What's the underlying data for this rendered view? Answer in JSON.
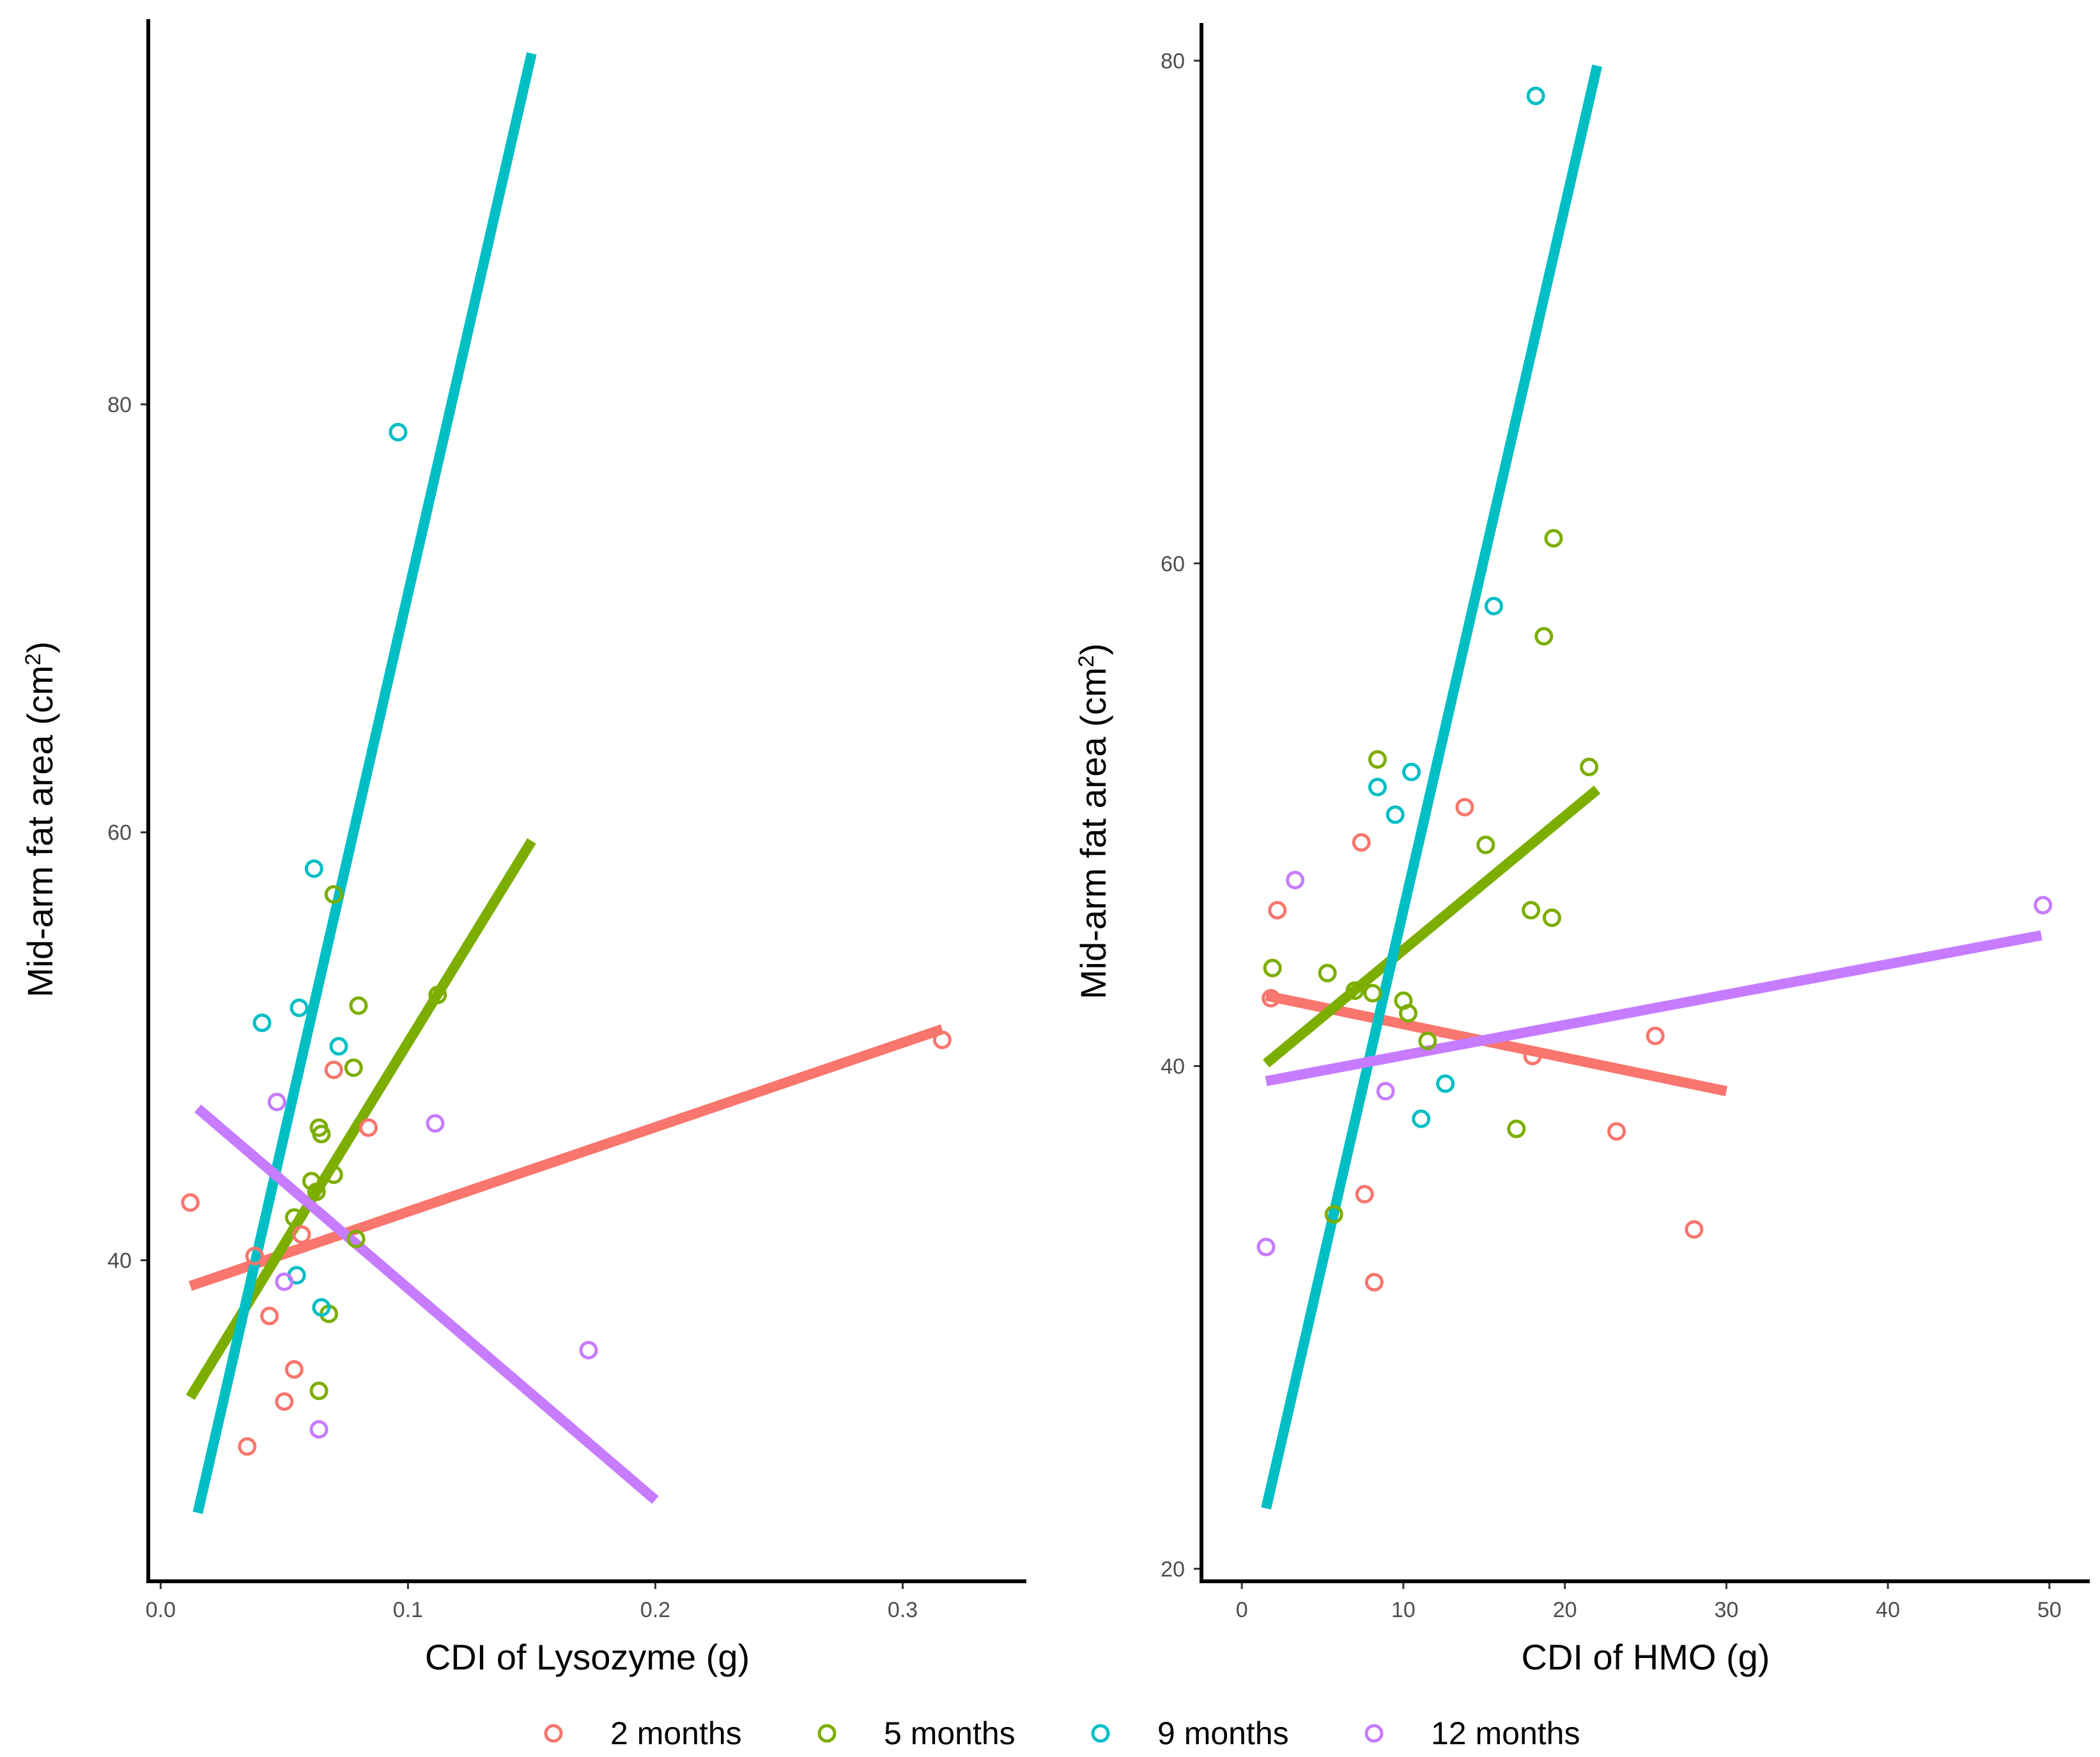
{
  "chart_data": [
    {
      "type": "scatter",
      "title": "",
      "xlabel": "CDI of Lysozyme (g)",
      "ylabel_main": "Mid-arm fat area (cm",
      "ylabel_sup": "2",
      "ylabel_end": ")",
      "xlim": [
        -0.005,
        0.35
      ],
      "ylim": [
        25,
        98
      ],
      "xticks": [
        0.0,
        0.1,
        0.2,
        0.3
      ],
      "xtick_labels": [
        "0.0",
        "0.1",
        "0.2",
        "0.3"
      ],
      "yticks": [
        40,
        60,
        80
      ],
      "ytick_labels": [
        "40",
        "60",
        "80"
      ],
      "series": [
        {
          "name": "2 months",
          "color": "#F8766D",
          "points": [
            [
              0.012,
              42.7
            ],
            [
              0.038,
              40.2
            ],
            [
              0.044,
              37.4
            ],
            [
              0.035,
              31.3
            ],
            [
              0.05,
              33.4
            ],
            [
              0.054,
              34.9
            ],
            [
              0.057,
              41.2
            ],
            [
              0.07,
              48.9
            ],
            [
              0.084,
              46.2
            ],
            [
              0.316,
              50.3
            ]
          ],
          "line": [
            [
              0.012,
              38.8
            ],
            [
              0.316,
              50.8
            ]
          ]
        },
        {
          "name": "5 months",
          "color": "#7CAE00",
          "points": [
            [
              0.054,
              42.0
            ],
            [
              0.061,
              43.7
            ],
            [
              0.063,
              43.2
            ],
            [
              0.064,
              46.2
            ],
            [
              0.065,
              45.9
            ],
            [
              0.064,
              33.9
            ],
            [
              0.068,
              37.5
            ],
            [
              0.07,
              44.0
            ],
            [
              0.07,
              57.1
            ],
            [
              0.078,
              49.0
            ],
            [
              0.079,
              41.0
            ],
            [
              0.08,
              51.9
            ],
            [
              0.112,
              52.4
            ]
          ],
          "line": [
            [
              0.012,
              33.6
            ],
            [
              0.15,
              59.6
            ]
          ]
        },
        {
          "name": "9 months",
          "color": "#00BFC4",
          "points": [
            [
              0.041,
              51.1
            ],
            [
              0.055,
              39.3
            ],
            [
              0.056,
              51.8
            ],
            [
              0.062,
              58.3
            ],
            [
              0.065,
              37.8
            ],
            [
              0.072,
              50.0
            ],
            [
              0.096,
              78.7
            ]
          ],
          "line": [
            [
              0.015,
              28.2
            ],
            [
              0.15,
              96.4
            ]
          ]
        },
        {
          "name": "12 months",
          "color": "#C77CFF",
          "points": [
            [
              0.047,
              47.4
            ],
            [
              0.05,
              39.0
            ],
            [
              0.064,
              32.1
            ],
            [
              0.111,
              46.4
            ],
            [
              0.173,
              35.8
            ]
          ],
          "line": [
            [
              0.015,
              47.1
            ],
            [
              0.2,
              28.8
            ]
          ]
        }
      ]
    },
    {
      "type": "scatter",
      "title": "",
      "xlabel": "CDI of HMO (g)",
      "ylabel_main": "Mid-arm fat area (cm",
      "ylabel_sup": "2",
      "ylabel_end": ")",
      "xlim": [
        -2.5,
        52.5
      ],
      "ylim": [
        19.5,
        81.5
      ],
      "xticks": [
        0,
        10,
        20,
        30,
        40,
        50
      ],
      "xtick_labels": [
        "0",
        "10",
        "20",
        "30",
        "40",
        "50"
      ],
      "yticks": [
        20,
        40,
        60,
        80
      ],
      "ytick_labels": [
        "20",
        "40",
        "60",
        "80"
      ],
      "series": [
        {
          "name": "2 months",
          "color": "#F8766D",
          "points": [
            [
              1.8,
              42.7
            ],
            [
              2.2,
              46.2
            ],
            [
              7.4,
              48.9
            ],
            [
              7.6,
              34.9
            ],
            [
              8.2,
              31.4
            ],
            [
              13.8,
              50.3
            ],
            [
              18.0,
              40.4
            ],
            [
              23.2,
              37.4
            ],
            [
              25.6,
              41.2
            ],
            [
              28.0,
              33.5
            ]
          ],
          "line": [
            [
              1.5,
              42.8
            ],
            [
              30.0,
              39.0
            ]
          ]
        },
        {
          "name": "5 months",
          "color": "#7CAE00",
          "points": [
            [
              1.9,
              43.9
            ],
            [
              5.3,
              43.7
            ],
            [
              7.0,
              43.0
            ],
            [
              8.1,
              42.9
            ],
            [
              5.7,
              34.1
            ],
            [
              8.4,
              52.2
            ],
            [
              10.0,
              42.6
            ],
            [
              10.3,
              42.1
            ],
            [
              11.5,
              41.0
            ],
            [
              15.1,
              48.8
            ],
            [
              17.0,
              37.5
            ],
            [
              17.9,
              46.2
            ],
            [
              18.7,
              57.1
            ],
            [
              19.2,
              45.9
            ],
            [
              19.3,
              61.0
            ],
            [
              21.5,
              51.9
            ]
          ],
          "line": [
            [
              1.5,
              40.1
            ],
            [
              22.0,
              51.0
            ]
          ]
        },
        {
          "name": "9 months",
          "color": "#00BFC4",
          "points": [
            [
              8.4,
              51.1
            ],
            [
              9.5,
              50.0
            ],
            [
              10.5,
              51.7
            ],
            [
              11.1,
              37.9
            ],
            [
              12.6,
              39.3
            ],
            [
              15.6,
              58.3
            ],
            [
              18.2,
              78.6
            ]
          ],
          "line": [
            [
              1.5,
              22.4
            ],
            [
              22.0,
              79.8
            ]
          ]
        },
        {
          "name": "12 months",
          "color": "#C77CFF",
          "points": [
            [
              1.5,
              32.8
            ],
            [
              3.3,
              47.4
            ],
            [
              8.9,
              39.0
            ],
            [
              49.6,
              46.4
            ]
          ],
          "line": [
            [
              1.5,
              39.4
            ],
            [
              49.5,
              45.2
            ]
          ]
        }
      ]
    }
  ],
  "legend": {
    "position": "bottom",
    "items": [
      {
        "label": "2 months",
        "color": "#F8766D"
      },
      {
        "label": "5 months",
        "color": "#7CAE00"
      },
      {
        "label": "9 months",
        "color": "#00BFC4"
      },
      {
        "label": "12 months",
        "color": "#C77CFF"
      }
    ]
  }
}
